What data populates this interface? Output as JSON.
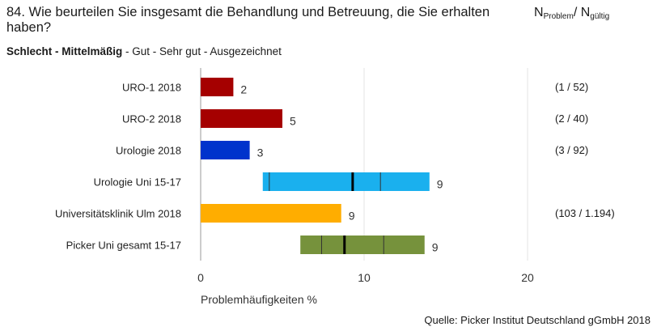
{
  "header": {
    "question": "84. Wie beurteilen Sie insgesamt die Behandlung und Betreuung, die Sie erhalten haben?",
    "n_label": {
      "n1": "N",
      "sub1": "Problem",
      "sep": "/ N",
      "sub2": "gültig"
    },
    "scale": {
      "bold": "Schlecht - Mittelmäßig",
      "rest": " - Gut - Sehr gut - Ausgezeichnet"
    }
  },
  "source": "Quelle: Picker Institut Deutschland gGmbH 2018",
  "chart_data": {
    "type": "bar",
    "title": "84. Wie beurteilen Sie insgesamt die Behandlung und Betreuung, die Sie erhalten haben?",
    "xlabel": "Problemhäufigkeiten %",
    "xlim": [
      0,
      20
    ],
    "xticks": [
      0,
      10,
      20
    ],
    "grid": true,
    "categories": [
      "URO-1 2018",
      "URO-2 2018",
      "Urologie 2018",
      "Urologie Uni 15-17",
      "Universitätsklinik Ulm 2018",
      "Picker Uni gesamt 15-17"
    ],
    "bars": [
      {
        "label": "URO-1 2018",
        "type": "bar",
        "value": 2,
        "display": "2",
        "color": "#a50000",
        "n": "(1 / 52)"
      },
      {
        "label": "URO-2 2018",
        "type": "bar",
        "value": 5,
        "display": "5",
        "color": "#a50000",
        "n": "(2 / 40)"
      },
      {
        "label": "Urologie 2018",
        "type": "bar",
        "value": 3,
        "display": "3",
        "color": "#0033cc",
        "n": "(3 / 92)"
      },
      {
        "label": "Urologie Uni 15-17",
        "type": "range",
        "min": 3.8,
        "max": 14,
        "q1": 4.2,
        "median": 9.3,
        "q3": 11,
        "display": "9",
        "color": "#1ab0ee",
        "n": ""
      },
      {
        "label": "Universitätsklinik Ulm 2018",
        "type": "bar",
        "value": 8.6,
        "display": "9",
        "color": "#ffad00",
        "n": "(103 / 1.194)"
      },
      {
        "label": "Picker Uni gesamt 15-17",
        "type": "range",
        "min": 6.1,
        "max": 13.7,
        "q1": 7.4,
        "median": 8.8,
        "q3": 11.2,
        "display": "9",
        "color": "#76923c",
        "n": ""
      }
    ]
  }
}
